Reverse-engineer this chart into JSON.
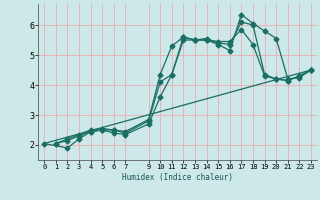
{
  "title": "",
  "xlabel": "Humidex (Indice chaleur)",
  "bg_color": "#cce8e8",
  "line_color": "#1a6e64",
  "grid_color": "#e8b4b8",
  "xlim": [
    -0.5,
    23.5
  ],
  "ylim": [
    1.5,
    6.7
  ],
  "xticks": [
    0,
    1,
    2,
    3,
    4,
    5,
    6,
    7,
    9,
    10,
    11,
    12,
    13,
    14,
    15,
    16,
    17,
    18,
    19,
    20,
    21,
    22,
    23
  ],
  "yticks": [
    2,
    3,
    4,
    5,
    6
  ],
  "line1": {
    "x": [
      1,
      2,
      3,
      4,
      5,
      6,
      7,
      9,
      10,
      11,
      12,
      13,
      14,
      15,
      16,
      17,
      18,
      19,
      20,
      21,
      22,
      23
    ],
    "y": [
      2.05,
      2.15,
      2.3,
      2.45,
      2.5,
      2.5,
      2.45,
      2.85,
      4.35,
      5.3,
      5.6,
      5.5,
      5.5,
      5.35,
      5.15,
      6.35,
      6.05,
      5.8,
      5.55,
      4.2,
      4.25,
      4.5
    ]
  },
  "line2": {
    "x": [
      1,
      2,
      3,
      4,
      5,
      6,
      7,
      9,
      10,
      11,
      12,
      13,
      14,
      15,
      16,
      17,
      18,
      19,
      20,
      21,
      22,
      23
    ],
    "y": [
      2.05,
      2.2,
      2.35,
      2.5,
      2.55,
      2.5,
      2.4,
      2.8,
      4.1,
      4.35,
      5.6,
      5.5,
      5.55,
      5.4,
      5.35,
      6.1,
      6.0,
      4.35,
      4.2,
      4.15,
      4.3,
      4.5
    ]
  },
  "line3": {
    "x": [
      0,
      2,
      3,
      4,
      5,
      6,
      7,
      9,
      10,
      11,
      12,
      13,
      14,
      15,
      16,
      17,
      18,
      19,
      20,
      21,
      22,
      23
    ],
    "y": [
      2.05,
      1.9,
      2.2,
      2.45,
      2.5,
      2.4,
      2.35,
      2.7,
      3.6,
      4.35,
      5.5,
      5.5,
      5.5,
      5.45,
      5.45,
      5.85,
      5.35,
      4.3,
      4.2,
      4.15,
      4.3,
      4.5
    ]
  },
  "line4": {
    "x": [
      0,
      23
    ],
    "y": [
      2.05,
      4.5
    ]
  }
}
